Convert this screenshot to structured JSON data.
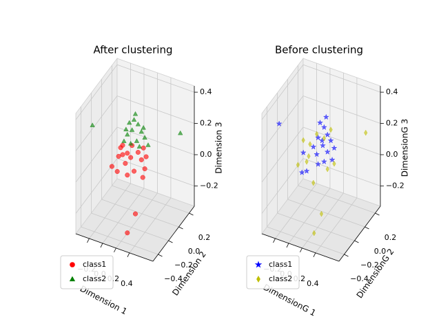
{
  "chart_data": [
    {
      "type": "scatter3d",
      "title": "After clustering",
      "xlabel": "Dimension 1",
      "ylabel": "Dimension 2",
      "zlabel": "Dimension 3",
      "xlim": [
        -0.4,
        0.75
      ],
      "ylim": [
        -0.5,
        0.3
      ],
      "zlim": [
        -0.33,
        0.44
      ],
      "xticks": [
        {
          "value": -0.2,
          "label": "−0.2"
        },
        {
          "value": 0,
          "label": "0.0"
        },
        0.2,
        0.4
      ],
      "yticks": [
        {
          "value": -0.4,
          "label": "−0.4"
        },
        {
          "value": -0.2,
          "label": "−0.2"
        },
        {
          "value": 0,
          "label": "0.0"
        },
        0.2
      ],
      "zticks": [
        {
          "value": -0.2,
          "label": "−0.2"
        },
        {
          "value": 0,
          "label": "0.0"
        },
        0.2,
        0.4
      ],
      "grid": true,
      "legend": "lower left",
      "series": [
        {
          "name": "class1",
          "color": "#ff0000",
          "marker": "circle",
          "x": [
            -0.04,
            -0.01,
            -0.07,
            0.06,
            0.11,
            0.03,
            0.22,
            0.3,
            0.27,
            0.32,
            0.16,
            -0.09,
            -0.17,
            0.06,
            0.29,
            0.34,
            -0.01,
            0.13,
            0.06,
            0.18
          ],
          "y": [
            -0.1,
            -0.1,
            -0.1,
            -0.1,
            -0.1,
            -0.1,
            -0.1,
            -0.1,
            -0.1,
            -0.1,
            -0.1,
            -0.1,
            -0.1,
            -0.1,
            -0.1,
            -0.1,
            -0.1,
            -0.1,
            -0.1,
            -0.1
          ],
          "z": [
            0.1,
            0.06,
            0.04,
            0.08,
            0.06,
            0.01,
            0.11,
            0.15,
            0.07,
            0.02,
            -0.02,
            -0.06,
            -0.04,
            -0.06,
            -0.04,
            0.1,
            0.12,
            0.14,
            -0.43,
            -0.29
          ]
        },
        {
          "name": "class2",
          "color": "#008000",
          "marker": "triangle",
          "x": [
            0.18,
            0.09,
            0.22,
            0.13,
            0.06,
            0.27,
            0.32,
            0.2,
            0.01,
            0.37,
            0.11,
            0.24,
            0.16,
            0.3,
            0.04,
            -0.46,
            0.85
          ],
          "y": [
            -0.1,
            -0.1,
            -0.1,
            -0.1,
            -0.1,
            -0.1,
            -0.1,
            -0.1,
            -0.1,
            -0.1,
            -0.1,
            -0.1,
            -0.1,
            -0.1,
            -0.1,
            -0.1,
            -0.1
          ],
          "z": [
            0.35,
            0.28,
            0.29,
            0.24,
            0.2,
            0.25,
            0.22,
            0.18,
            0.15,
            0.18,
            0.15,
            0.15,
            0.31,
            0.28,
            0.23,
            0.18,
            0.33
          ]
        }
      ]
    },
    {
      "type": "scatter3d",
      "title": "Before clustering",
      "xlabel": "DimensionG 1",
      "ylabel": "DimensionG 2",
      "zlabel": "DimensionG 3",
      "xlim": [
        -0.4,
        0.75
      ],
      "ylim": [
        -0.5,
        0.3
      ],
      "zlim": [
        -0.33,
        0.44
      ],
      "xticks": [
        {
          "value": -0.2,
          "label": "−0.2"
        },
        {
          "value": 0,
          "label": "0.0"
        },
        0.2,
        0.4
      ],
      "yticks": [
        {
          "value": -0.4,
          "label": "−0.4"
        },
        {
          "value": -0.2,
          "label": "−0.2"
        },
        {
          "value": 0,
          "label": "0.0"
        },
        0.2
      ],
      "zticks": [
        {
          "value": -0.2,
          "label": "−0.2"
        },
        {
          "value": 0,
          "label": "0.0"
        },
        0.2,
        0.4
      ],
      "grid": true,
      "legend": "lower left",
      "series": [
        {
          "name": "class1",
          "color": "#0000ff",
          "marker": "star",
          "x": [
            -0.45,
            0.16,
            0.22,
            0.27,
            0.13,
            0.32,
            0.2,
            0.27,
            0.11,
            0.22,
            0.34,
            0.06,
            -0.09,
            -0.04,
            -0.11,
            0.13,
            0.37,
            0.25,
            0.19
          ],
          "y": [
            -0.1,
            -0.1,
            -0.1,
            -0.1,
            -0.1,
            -0.1,
            -0.1,
            -0.1,
            -0.1,
            -0.1,
            -0.1,
            -0.1,
            -0.1,
            -0.1,
            -0.1,
            -0.1,
            -0.1,
            -0.1,
            -0.1
          ],
          "z": [
            0.19,
            0.29,
            0.27,
            0.23,
            0.19,
            0.2,
            0.15,
            0.12,
            0.08,
            0.05,
            0.08,
            0.12,
            0.06,
            -0.05,
            -0.07,
            0.02,
            0.16,
            0.34,
            0.18
          ]
        },
        {
          "name": "class2",
          "color": "#bfbf00",
          "marker": "diamond",
          "x": [
            0.84,
            0.18,
            0.07,
            -0.09,
            -0.04,
            -0.17,
            0.01,
            0.11,
            0.27,
            0.37,
            0.06,
            0.22,
            -0.01,
            0.32
          ],
          "y": [
            -0.1,
            -0.1,
            -0.1,
            -0.1,
            -0.1,
            -0.1,
            -0.1,
            -0.1,
            -0.1,
            -0.1,
            -0.1,
            -0.1,
            -0.1,
            -0.1
          ],
          "z": [
            0.33,
            -0.29,
            -0.43,
            0.14,
            0.01,
            -0.03,
            0.13,
            0.21,
            0.01,
            0.06,
            -0.11,
            0.2,
            0.05,
            0.27
          ]
        }
      ]
    }
  ]
}
